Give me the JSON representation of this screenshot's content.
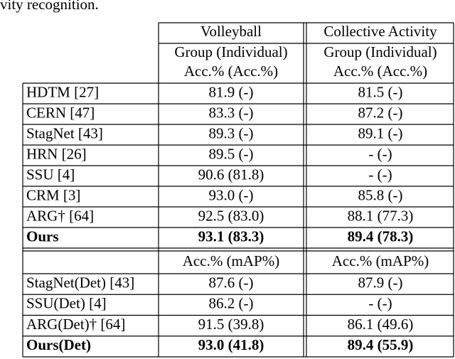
{
  "caption_fragment": "vity recognition.",
  "table": {
    "header_rows": [
      [
        "Volleyball",
        "Collective Activity"
      ],
      [
        "Group (Individual)",
        "Group (Individual)"
      ],
      [
        "Acc.% (Acc.%)",
        "Acc.% (Acc.%)"
      ]
    ],
    "rows": [
      [
        "HDTM [27]",
        "81.9 (-)",
        "81.5 (-)"
      ],
      [
        "CERN [47]",
        "83.3 (-)",
        "87.2 (-)"
      ],
      [
        "StagNet [43]",
        "89.3 (-)",
        "89.1 (-)"
      ],
      [
        "HRN [26]",
        "89.5 (-)",
        "- (-)"
      ],
      [
        "SSU [4]",
        "90.6 (81.8)",
        "- (-)"
      ],
      [
        "CRM [3]",
        "93.0 (-)",
        "85.8 (-)"
      ],
      [
        "ARG† [64]",
        "92.5 (83.0)",
        "88.1 (77.3)"
      ],
      [
        "Ours",
        "93.1 (83.3)",
        "89.4 (78.3)"
      ]
    ],
    "det_header": [
      "Acc.% (mAP%)",
      "Acc.% (mAP%)"
    ],
    "det_rows": [
      [
        "StagNet(Det) [43]",
        "87.6 (-)",
        "87.9 (-)"
      ],
      [
        "SSU(Det) [4]",
        "86.2 (-)",
        "- (-)"
      ],
      [
        "ARG(Det)† [64]",
        "91.5 (39.8)",
        "86.1 (49.6)"
      ],
      [
        "Ours(Det)",
        "93.0 (41.8)",
        "89.4 (55.9)"
      ]
    ]
  }
}
